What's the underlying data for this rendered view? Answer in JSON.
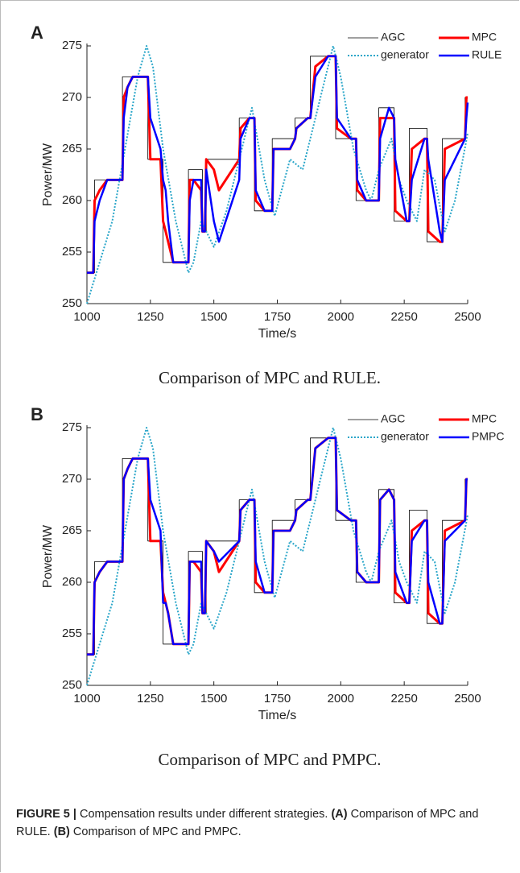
{
  "chart_data": [
    {
      "type": "line",
      "panel": "A",
      "subtitle": "Comparison of MPC and RULE.",
      "xlabel": "Time/s",
      "ylabel": "Power/MW",
      "xlim": [
        1000,
        2500
      ],
      "xticks": [
        1000,
        1250,
        1500,
        1750,
        2000,
        2250,
        2500
      ],
      "ylim": [
        250,
        275
      ],
      "yticks": [
        250,
        255,
        260,
        265,
        270,
        275
      ],
      "legend": "upper right",
      "grid": false,
      "series": [
        {
          "name": "AGC",
          "color": "#000000",
          "width": 0.8,
          "linestyle": "solid",
          "x": [
            1000,
            1030,
            1030,
            1140,
            1140,
            1240,
            1240,
            1300,
            1300,
            1400,
            1400,
            1455,
            1455,
            1470,
            1470,
            1600,
            1600,
            1660,
            1660,
            1730,
            1730,
            1820,
            1820,
            1880,
            1880,
            1980,
            1980,
            2060,
            2060,
            2150,
            2150,
            2210,
            2210,
            2270,
            2270,
            2340,
            2340,
            2400,
            2400,
            2490,
            2490,
            2500
          ],
          "values": [
            253,
            253,
            262,
            262,
            272,
            272,
            264,
            264,
            254,
            254,
            263,
            263,
            257,
            257,
            264,
            264,
            268,
            268,
            259,
            259,
            266,
            266,
            268,
            268,
            274,
            274,
            266,
            266,
            260,
            260,
            269,
            269,
            258,
            258,
            267,
            267,
            256,
            256,
            266,
            266,
            270,
            270
          ]
        },
        {
          "name": "MPC",
          "color": "#ff0000",
          "width": 3,
          "linestyle": "solid",
          "x": [
            1000,
            1025,
            1030,
            1050,
            1080,
            1100,
            1140,
            1145,
            1160,
            1180,
            1230,
            1240,
            1250,
            1290,
            1300,
            1310,
            1320,
            1340,
            1350,
            1390,
            1400,
            1405,
            1420,
            1450,
            1455,
            1465,
            1470,
            1500,
            1520,
            1600,
            1605,
            1640,
            1660,
            1665,
            1700,
            1730,
            1735,
            1800,
            1820,
            1825,
            1870,
            1880,
            1900,
            1950,
            1980,
            1985,
            2040,
            2060,
            2065,
            2100,
            2140,
            2150,
            2155,
            2190,
            2210,
            2215,
            2260,
            2270,
            2280,
            2330,
            2340,
            2345,
            2390,
            2400,
            2410,
            2490,
            2495,
            2500
          ],
          "values": [
            253,
            253,
            260,
            261,
            262,
            262,
            262,
            270,
            271,
            272,
            272,
            272,
            264,
            264,
            258,
            257,
            256,
            254,
            254,
            254,
            254,
            262,
            262,
            261,
            257,
            257,
            264,
            263,
            261,
            264,
            267,
            268,
            268,
            260,
            259,
            259,
            265,
            265,
            266,
            267,
            268,
            268,
            273,
            274,
            274,
            267,
            266,
            266,
            261,
            260,
            260,
            260,
            268,
            268,
            268,
            259,
            258,
            258,
            265,
            266,
            266,
            257,
            256,
            256,
            265,
            266,
            270,
            270
          ]
        },
        {
          "name": "generator",
          "color": "#2aa6c9",
          "width": 2,
          "linestyle": "dotted",
          "x": [
            1000,
            1100,
            1150,
            1200,
            1235,
            1260,
            1300,
            1350,
            1400,
            1420,
            1450,
            1500,
            1550,
            1600,
            1650,
            1700,
            1740,
            1800,
            1850,
            1900,
            1970,
            2000,
            2050,
            2100,
            2120,
            2150,
            2200,
            2230,
            2260,
            2300,
            2330,
            2370,
            2410,
            2450,
            2500
          ],
          "values": [
            250,
            258,
            265,
            272,
            275,
            273,
            265,
            258,
            253,
            254,
            258,
            255.5,
            259,
            264,
            269,
            262,
            258.5,
            264,
            263,
            268,
            275,
            272,
            265,
            261,
            260,
            263,
            266,
            262,
            260,
            258,
            263,
            262,
            257,
            260,
            266.5
          ]
        },
        {
          "name": "RULE",
          "color": "#0000ff",
          "width": 2.5,
          "linestyle": "solid",
          "x": [
            1000,
            1025,
            1030,
            1050,
            1080,
            1100,
            1140,
            1145,
            1160,
            1180,
            1230,
            1240,
            1250,
            1290,
            1300,
            1310,
            1320,
            1340,
            1350,
            1390,
            1400,
            1405,
            1420,
            1450,
            1455,
            1465,
            1470,
            1500,
            1520,
            1600,
            1605,
            1640,
            1660,
            1665,
            1700,
            1730,
            1735,
            1800,
            1820,
            1825,
            1870,
            1880,
            1900,
            1950,
            1980,
            1985,
            2040,
            2060,
            2065,
            2100,
            2140,
            2150,
            2155,
            2190,
            2210,
            2215,
            2260,
            2270,
            2280,
            2330,
            2340,
            2345,
            2390,
            2400,
            2410,
            2490,
            2495,
            2500
          ],
          "values": [
            253,
            253,
            258,
            260,
            262,
            262,
            262,
            268,
            271,
            272,
            272,
            272,
            268,
            265,
            262,
            261,
            258,
            254,
            254,
            254,
            254,
            260,
            262,
            262,
            257,
            257,
            263,
            258,
            256,
            262,
            266,
            268,
            268,
            261,
            259,
            259,
            265,
            265,
            266,
            267,
            268,
            268,
            272,
            274,
            274,
            268,
            266,
            266,
            262,
            260,
            260,
            260,
            266,
            269,
            268,
            264,
            258,
            258,
            262,
            266,
            266,
            264,
            257,
            256,
            262,
            266,
            268,
            269.5
          ]
        }
      ]
    },
    {
      "type": "line",
      "panel": "B",
      "subtitle": "Comparison of MPC and PMPC.",
      "xlabel": "Time/s",
      "ylabel": "Power/MW",
      "xlim": [
        1000,
        2500
      ],
      "xticks": [
        1000,
        1250,
        1500,
        1750,
        2000,
        2250,
        2500
      ],
      "ylim": [
        250,
        275
      ],
      "yticks": [
        250,
        255,
        260,
        265,
        270,
        275
      ],
      "legend": "upper right",
      "grid": false,
      "series": [
        {
          "name": "AGC",
          "color": "#000000",
          "width": 0.8,
          "linestyle": "solid",
          "x": [
            1000,
            1030,
            1030,
            1140,
            1140,
            1240,
            1240,
            1300,
            1300,
            1400,
            1400,
            1455,
            1455,
            1470,
            1470,
            1600,
            1600,
            1660,
            1660,
            1730,
            1730,
            1820,
            1820,
            1880,
            1880,
            1980,
            1980,
            2060,
            2060,
            2150,
            2150,
            2210,
            2210,
            2270,
            2270,
            2340,
            2340,
            2400,
            2400,
            2490,
            2490,
            2500
          ],
          "values": [
            253,
            253,
            262,
            262,
            272,
            272,
            264,
            264,
            254,
            254,
            263,
            263,
            257,
            257,
            264,
            264,
            268,
            268,
            259,
            259,
            266,
            266,
            268,
            268,
            274,
            274,
            266,
            266,
            260,
            260,
            269,
            269,
            258,
            258,
            267,
            267,
            256,
            256,
            266,
            266,
            270,
            270
          ]
        },
        {
          "name": "MPC",
          "color": "#ff0000",
          "width": 3,
          "linestyle": "solid",
          "x": [
            1000,
            1025,
            1030,
            1050,
            1080,
            1100,
            1140,
            1145,
            1160,
            1180,
            1230,
            1240,
            1250,
            1290,
            1300,
            1310,
            1320,
            1340,
            1350,
            1390,
            1400,
            1405,
            1420,
            1450,
            1455,
            1465,
            1470,
            1500,
            1520,
            1600,
            1605,
            1640,
            1660,
            1665,
            1700,
            1730,
            1735,
            1800,
            1820,
            1825,
            1870,
            1880,
            1900,
            1950,
            1980,
            1985,
            2040,
            2060,
            2065,
            2100,
            2140,
            2150,
            2155,
            2190,
            2210,
            2215,
            2260,
            2270,
            2280,
            2330,
            2340,
            2345,
            2390,
            2400,
            2410,
            2490,
            2495,
            2500
          ],
          "values": [
            253,
            253,
            260,
            261,
            262,
            262,
            262,
            270,
            271,
            272,
            272,
            272,
            264,
            264,
            259,
            258,
            257,
            254,
            254,
            254,
            254,
            262,
            262,
            261,
            257,
            257,
            264,
            263,
            261,
            264,
            267,
            268,
            268,
            260,
            259,
            259,
            265,
            265,
            266,
            267,
            268,
            268,
            273,
            274,
            274,
            267,
            266,
            266,
            261,
            260,
            260,
            260,
            268,
            269,
            268,
            259,
            258,
            258,
            265,
            266,
            266,
            257,
            256,
            256,
            265,
            266,
            270,
            270
          ]
        },
        {
          "name": "generator",
          "color": "#2aa6c9",
          "width": 2,
          "linestyle": "dotted",
          "x": [
            1000,
            1100,
            1150,
            1200,
            1235,
            1260,
            1300,
            1350,
            1400,
            1420,
            1450,
            1500,
            1550,
            1600,
            1650,
            1700,
            1740,
            1800,
            1850,
            1900,
            1970,
            2000,
            2050,
            2100,
            2120,
            2150,
            2200,
            2230,
            2260,
            2300,
            2330,
            2370,
            2410,
            2450,
            2500
          ],
          "values": [
            250,
            258,
            265,
            272,
            275,
            273,
            265,
            258,
            253,
            254,
            258,
            255.5,
            259,
            264,
            269,
            262,
            258.5,
            264,
            263,
            268,
            275,
            272,
            265,
            261,
            260,
            263,
            266,
            262,
            260,
            258,
            263,
            262,
            257,
            260,
            266.5
          ]
        },
        {
          "name": "PMPC",
          "color": "#0000ff",
          "width": 2.5,
          "linestyle": "solid",
          "x": [
            1000,
            1025,
            1030,
            1050,
            1080,
            1100,
            1140,
            1145,
            1160,
            1180,
            1230,
            1240,
            1250,
            1290,
            1300,
            1310,
            1320,
            1340,
            1350,
            1390,
            1400,
            1405,
            1420,
            1450,
            1455,
            1465,
            1470,
            1500,
            1520,
            1600,
            1605,
            1640,
            1660,
            1665,
            1700,
            1730,
            1735,
            1800,
            1820,
            1825,
            1870,
            1880,
            1900,
            1950,
            1980,
            1985,
            2040,
            2060,
            2065,
            2100,
            2140,
            2150,
            2155,
            2190,
            2210,
            2215,
            2260,
            2270,
            2280,
            2330,
            2340,
            2345,
            2390,
            2400,
            2410,
            2490,
            2495,
            2500
          ],
          "values": [
            253,
            253,
            260,
            261,
            262,
            262,
            262,
            270,
            271,
            272,
            272,
            272,
            268,
            265,
            258,
            258,
            257,
            254,
            254,
            254,
            254,
            262,
            262,
            262,
            257,
            257,
            264,
            263,
            262,
            264,
            267,
            268,
            268,
            262,
            259,
            259,
            265,
            265,
            266,
            267,
            268,
            268,
            273,
            274,
            274,
            267,
            266,
            266,
            261,
            260,
            260,
            260,
            268,
            269,
            268,
            261,
            258,
            258,
            264,
            266,
            266,
            260,
            256,
            256,
            264,
            266,
            270,
            270
          ]
        }
      ]
    }
  ],
  "caption": {
    "label": "FIGURE 5 |",
    "text": "Compensation results under different strategies.",
    "parts": [
      {
        "label": "(A)",
        "text": "Comparison of MPC and RULE."
      },
      {
        "label": "(B)",
        "text": "Comparison of MPC and PMPC."
      }
    ]
  }
}
